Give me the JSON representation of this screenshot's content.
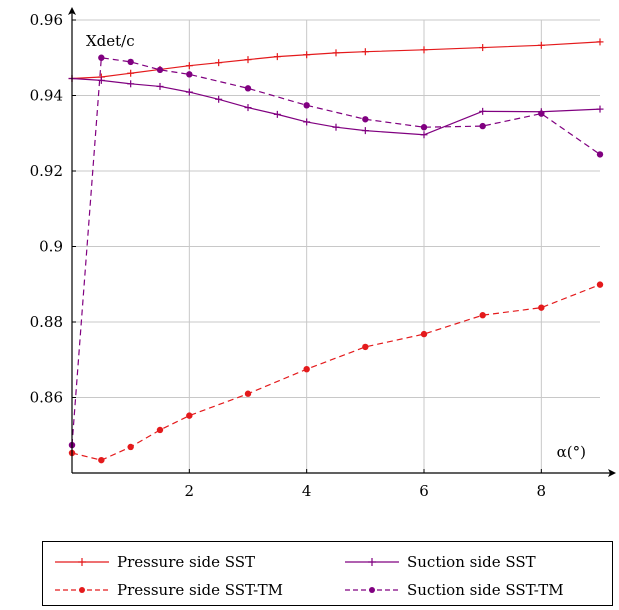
{
  "chart_data": {
    "type": "line",
    "xlabel": "α(°)",
    "ylabel": "Xdet/c",
    "xlim": [
      0,
      9
    ],
    "ylim": [
      0.84,
      0.96
    ],
    "x_ticks": [
      2,
      4,
      6,
      8
    ],
    "x_tick_labels": [
      "2",
      "4",
      "6",
      "8"
    ],
    "y_ticks": [
      0.86,
      0.88,
      0.9,
      0.92,
      0.94,
      0.96
    ],
    "y_tick_labels": [
      "0.86",
      "0.88",
      "0.9",
      "0.92",
      "0.94",
      "0.96"
    ],
    "grid": true,
    "legend_position": "below",
    "series": [
      {
        "name": "Pressure side SST",
        "color": "#e41a1c",
        "dash": "solid",
        "marker": "plus",
        "x": [
          0,
          0.5,
          1,
          1.5,
          2,
          2.5,
          3,
          3.5,
          4,
          4.5,
          5,
          6,
          7,
          8,
          9
        ],
        "y": [
          0.9445,
          0.9449,
          0.9459,
          0.9469,
          0.9479,
          0.9487,
          0.9495,
          0.9503,
          0.9508,
          0.9513,
          0.9516,
          0.9521,
          0.9527,
          0.9533,
          0.9542
        ]
      },
      {
        "name": "Suction side SST",
        "color": "#800080",
        "dash": "solid",
        "marker": "plus",
        "x": [
          0,
          0.5,
          1,
          1.5,
          2,
          2.5,
          3,
          3.5,
          4,
          4.5,
          5,
          6,
          7,
          8,
          9
        ],
        "y": [
          0.9445,
          0.944,
          0.9431,
          0.9424,
          0.9409,
          0.939,
          0.9368,
          0.935,
          0.933,
          0.9316,
          0.9307,
          0.9296,
          0.9358,
          0.9357,
          0.9364
        ]
      },
      {
        "name": "Pressure side SST-TM",
        "color": "#e41a1c",
        "dash": "dashed",
        "marker": "circle",
        "x": [
          0,
          0.5,
          1,
          1.5,
          2,
          3,
          4,
          5,
          6,
          7,
          8,
          9
        ],
        "y": [
          0.8453,
          0.8434,
          0.8469,
          0.8514,
          0.8552,
          0.861,
          0.8675,
          0.8734,
          0.8768,
          0.8818,
          0.8838,
          0.8899
        ]
      },
      {
        "name": "Suction side SST-TM",
        "color": "#800080",
        "dash": "dashed",
        "marker": "circle",
        "x": [
          0,
          0.5,
          1,
          1.5,
          2,
          3,
          4,
          5,
          6,
          7,
          8,
          9
        ],
        "y": [
          0.8474,
          0.95,
          0.9489,
          0.9468,
          0.9456,
          0.9419,
          0.9374,
          0.9337,
          0.9316,
          0.9319,
          0.9352,
          0.9244
        ]
      }
    ]
  }
}
